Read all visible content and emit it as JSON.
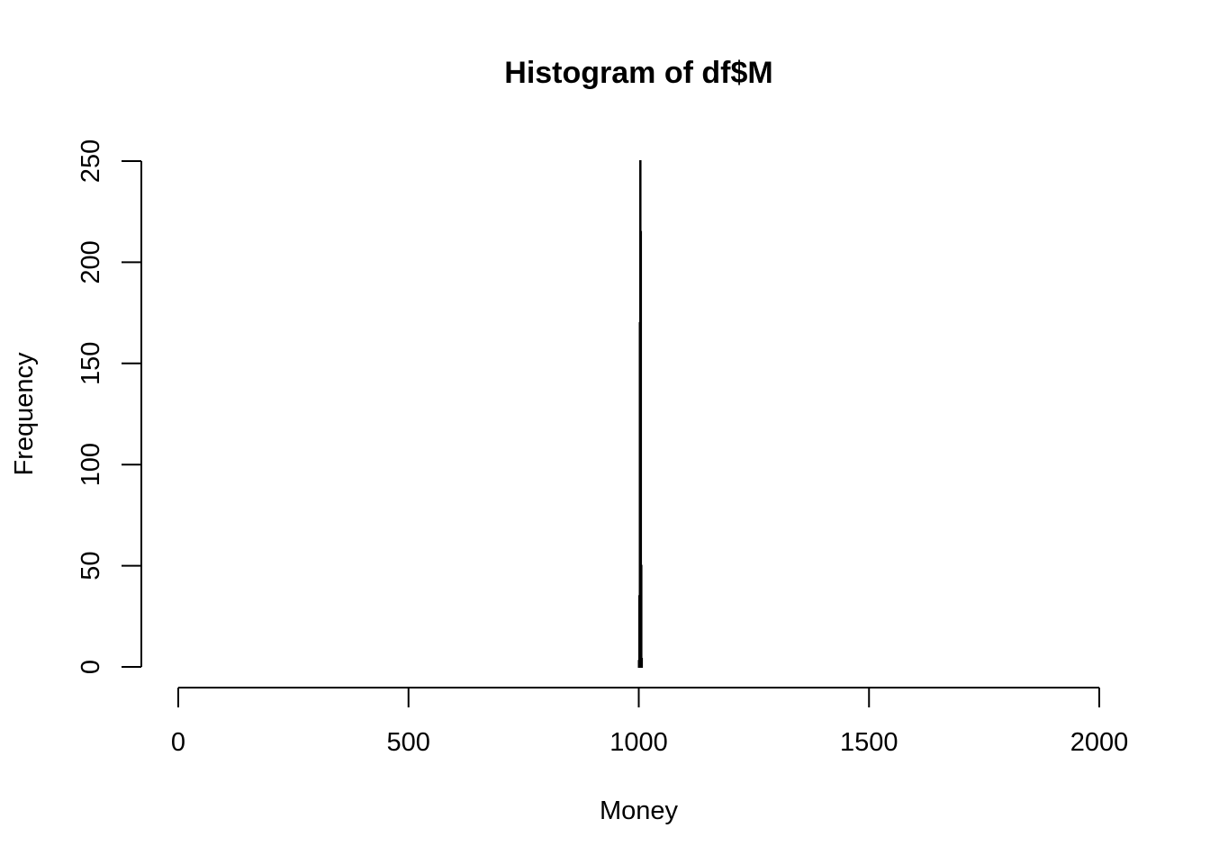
{
  "chart_data": {
    "type": "bar",
    "title": "Histogram of df$M",
    "xlabel": "Money",
    "ylabel": "Frequency",
    "xlim": [
      0,
      2000
    ],
    "ylim": [
      0,
      250
    ],
    "x_ticks": [
      0,
      500,
      1000,
      1500,
      2000
    ],
    "y_ticks": [
      0,
      50,
      100,
      150,
      200,
      250
    ],
    "grid": false,
    "legend": "none",
    "bins": [
      {
        "start": 1000,
        "end": 1001,
        "count": 3
      },
      {
        "start": 1001,
        "end": 1002,
        "count": 35
      },
      {
        "start": 1002,
        "end": 1003,
        "count": 170
      },
      {
        "start": 1003,
        "end": 1004,
        "count": 250
      },
      {
        "start": 1004,
        "end": 1005,
        "count": 215
      },
      {
        "start": 1005,
        "end": 1006,
        "count": 50
      },
      {
        "start": 1006,
        "end": 1007,
        "count": 4
      }
    ],
    "colors": {
      "bar_fill": "#ffffff",
      "bar_stroke": "#000000",
      "axis": "#000000"
    }
  }
}
